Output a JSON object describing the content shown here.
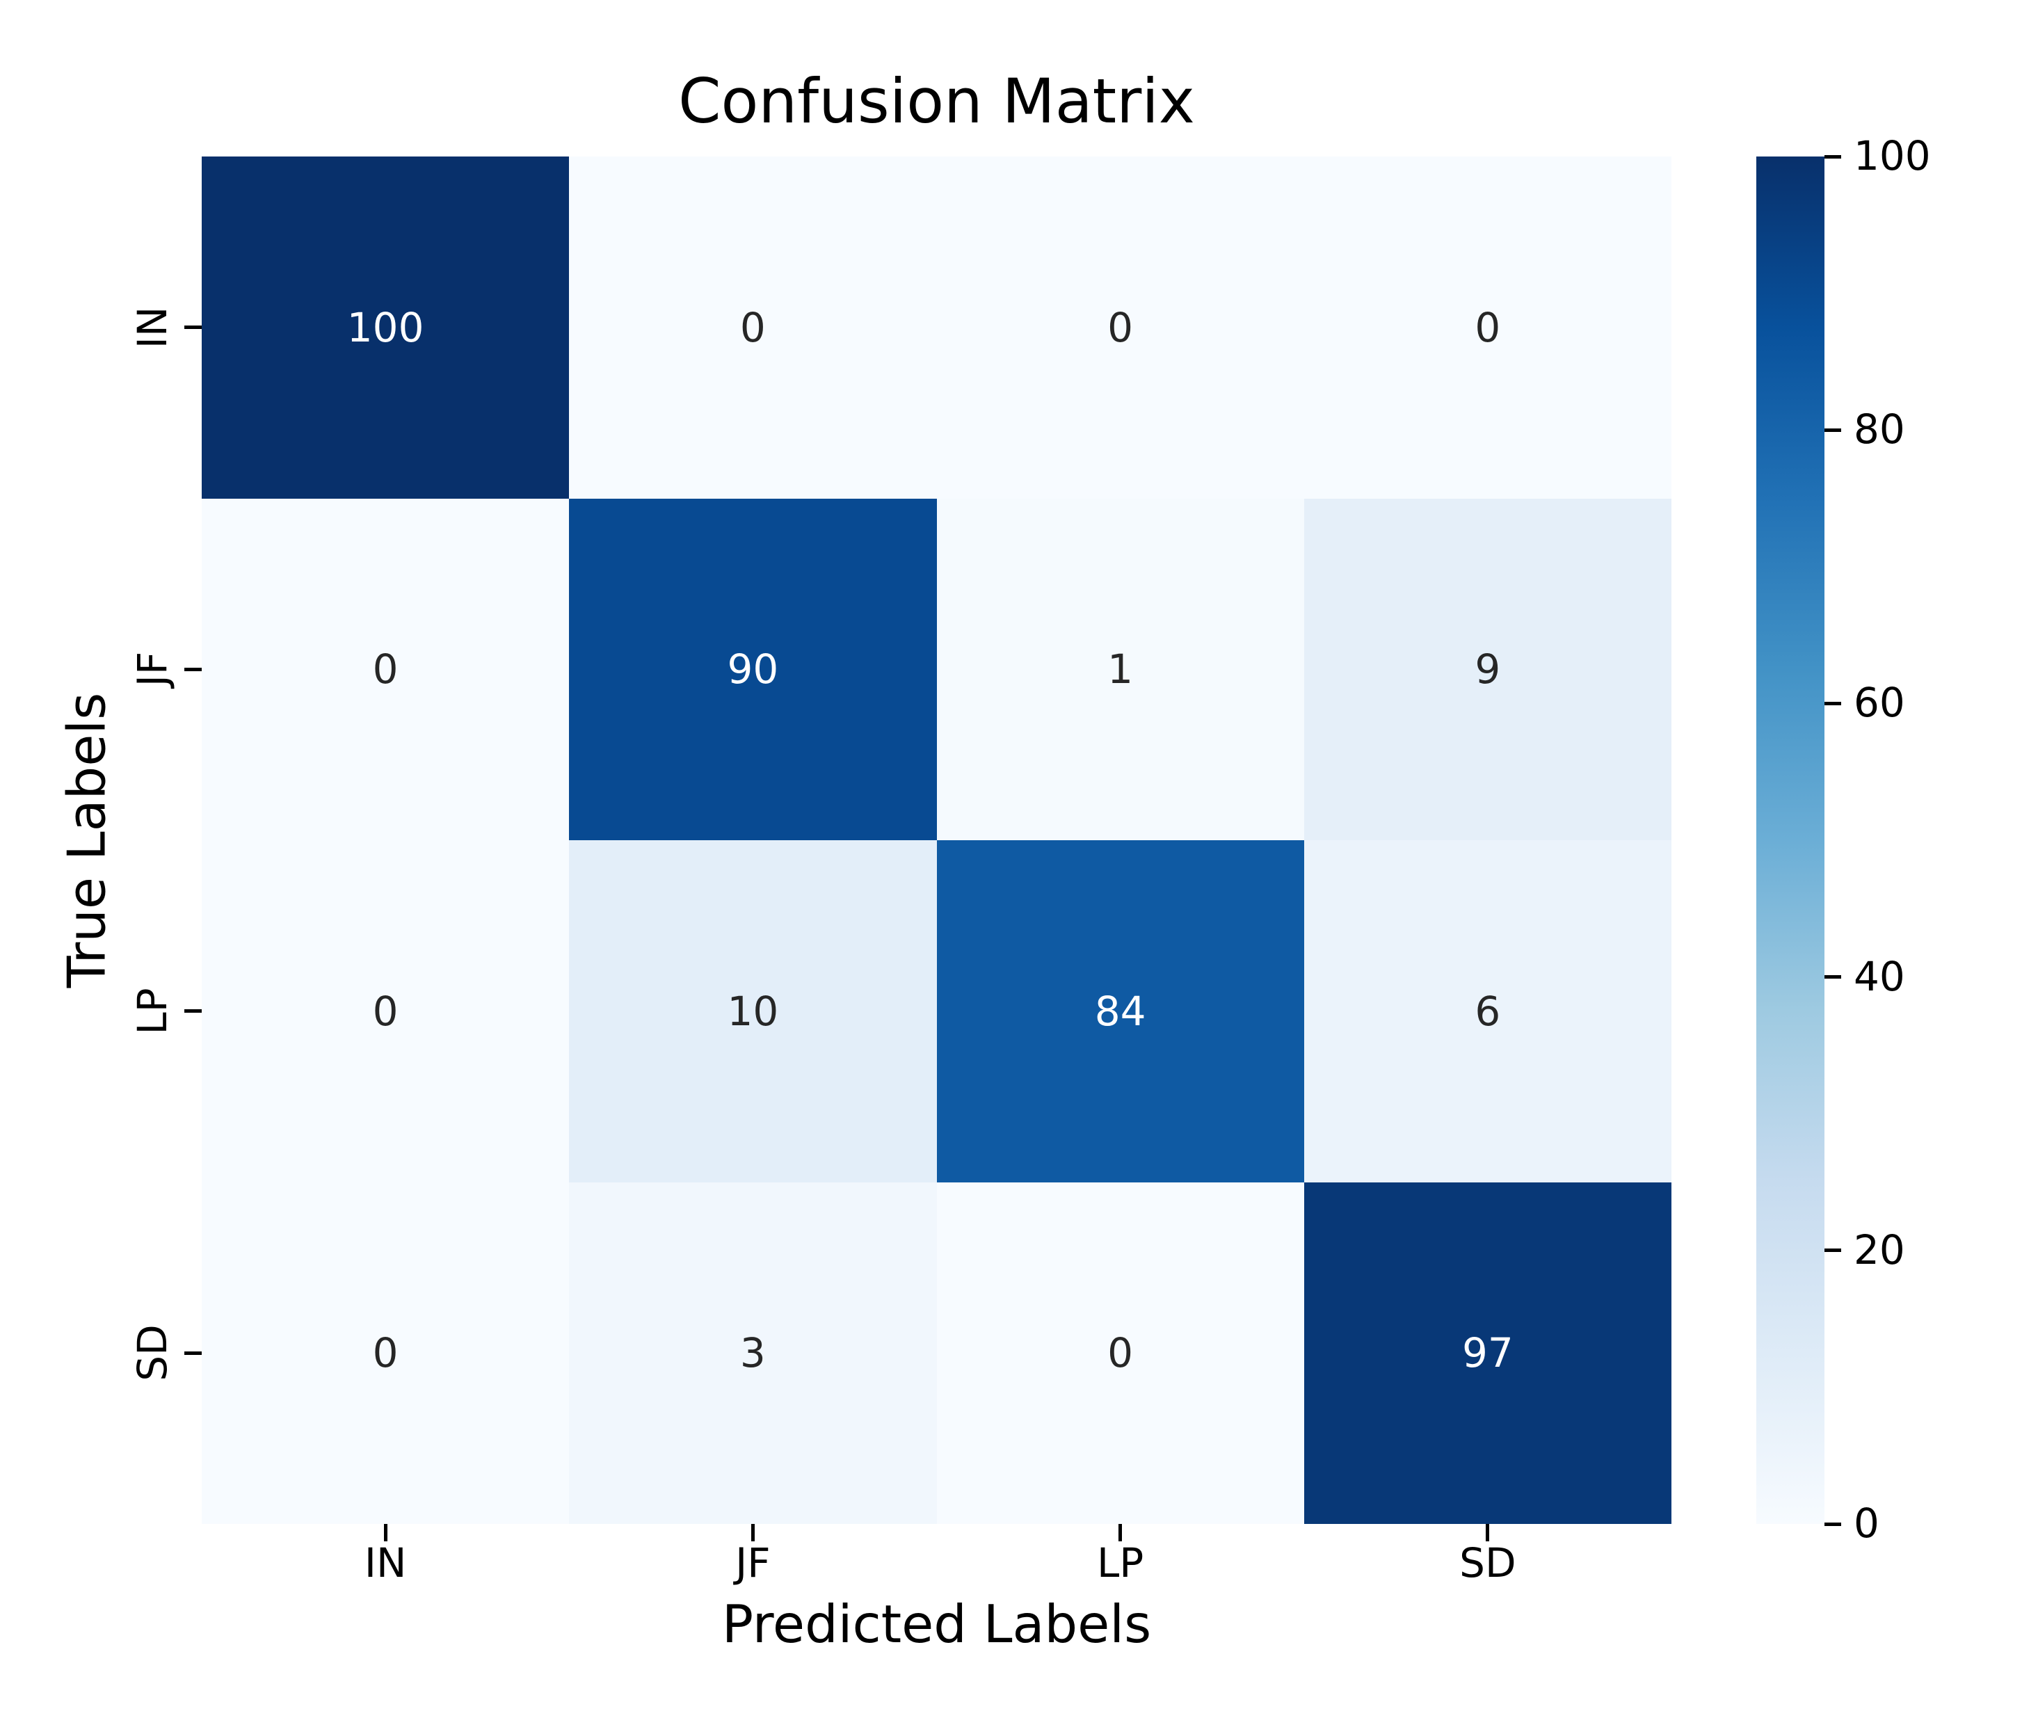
{
  "page": {
    "background": "#ffffff",
    "text_color": "#000000"
  },
  "chart_data": {
    "type": "heatmap",
    "title": "Confusion Matrix",
    "xlabel": "Predicted Labels",
    "ylabel": "True Labels",
    "x_categories": [
      "IN",
      "JF",
      "LP",
      "SD"
    ],
    "y_categories": [
      "IN",
      "JF",
      "LP",
      "SD"
    ],
    "values": [
      [
        100,
        0,
        0,
        0
      ],
      [
        0,
        90,
        1,
        9
      ],
      [
        0,
        10,
        84,
        6
      ],
      [
        0,
        3,
        0,
        97
      ]
    ],
    "vmin": 0,
    "vmax": 100,
    "grid": false,
    "legend_position": "right-colorbar",
    "colorbar_ticks": [
      100,
      80,
      60,
      40,
      20,
      0
    ],
    "colormap_name": "Blues",
    "colormap_anchors": [
      {
        "t": 0.0,
        "color": "#f7fbff"
      },
      {
        "t": 0.125,
        "color": "#deebf7"
      },
      {
        "t": 0.25,
        "color": "#c6dbef"
      },
      {
        "t": 0.375,
        "color": "#9ecae1"
      },
      {
        "t": 0.5,
        "color": "#6baed6"
      },
      {
        "t": 0.625,
        "color": "#4292c6"
      },
      {
        "t": 0.75,
        "color": "#2171b5"
      },
      {
        "t": 0.875,
        "color": "#08519c"
      },
      {
        "t": 1.0,
        "color": "#08306b"
      }
    ],
    "annotation_text_light": "#ffffff",
    "annotation_text_dark": "#262626",
    "tick_color": "#000000"
  }
}
